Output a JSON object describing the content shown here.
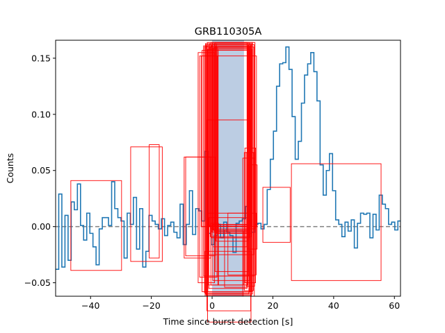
{
  "chart_data": {
    "type": "line",
    "title": "GRB110305A",
    "xlabel": "Time since burst detection [s]",
    "ylabel": "Counts",
    "xlim": [
      -51.5,
      62
    ],
    "ylim": [
      -0.062,
      0.166
    ],
    "xticks": [
      -40,
      -20,
      0,
      20,
      40,
      60
    ],
    "xtick_labels": [
      "−40",
      "−20",
      "0",
      "20",
      "40",
      "60"
    ],
    "yticks": [
      -0.05,
      0.0,
      0.05,
      0.1,
      0.15
    ],
    "ytick_labels": [
      "−0.05",
      "0.00",
      "0.05",
      "0.10",
      "0.15"
    ],
    "grid": false,
    "baseline": 0.0,
    "series": [
      {
        "style": "steps",
        "color": "#1f77b4",
        "bin_width": 1.024,
        "x_start": -51.5,
        "values": [
          -0.038,
          0.029,
          -0.036,
          0.01,
          -0.03,
          0.022,
          0.015,
          0.038,
          0.001,
          -0.012,
          0.012,
          -0.006,
          -0.018,
          -0.034,
          -0.002,
          0.008,
          0.008,
          0.001,
          0.04,
          0.016,
          0.008,
          0.005,
          -0.028,
          0.012,
          0.002,
          0.026,
          -0.02,
          0.016,
          -0.036,
          -0.022,
          0.01,
          0.005,
          0.002,
          -0.002,
          0.007,
          -0.008,
          0.001,
          0.004,
          -0.005,
          -0.01,
          0.02,
          -0.016,
          0.002,
          0.032,
          -0.007,
          0.016,
          0.014,
          0.005,
          0.067,
          -0.006,
          -0.016,
          -0.008,
          0.002,
          -0.01,
          0.004,
          -0.005,
          -0.008,
          -0.023,
          0.003,
          0.005,
          0.007,
          0.018,
          0.006,
          -0.005,
          0.002,
          0.003,
          -0.002,
          0.002,
          0.033,
          0.06,
          0.085,
          0.125,
          0.145,
          0.146,
          0.16,
          0.14,
          0.098,
          0.06,
          0.076,
          0.11,
          0.135,
          0.145,
          0.155,
          0.138,
          0.112,
          0.055,
          0.028,
          0.05,
          0.065,
          0.032,
          0.006,
          0.002,
          -0.009,
          0.004,
          -0.004,
          0.006,
          -0.019,
          0.003,
          0.012,
          0.011,
          0.012,
          -0.01,
          0.011,
          -0.003,
          0.028,
          0.02,
          0.016,
          0.002,
          0.004,
          -0.003,
          0.005,
          -0.024,
          -0.005,
          -0.018,
          0.012,
          -0.045,
          0.008,
          -0.027,
          -0.001,
          0.032,
          0.005,
          0.01,
          0.004,
          -0.019,
          0.034,
          0.028,
          0.022,
          0.032,
          0.019,
          0.005,
          0.032,
          0.01,
          0.05,
          0.033,
          0.012,
          0.03,
          0.025,
          -0.03,
          -0.02,
          0.002,
          0.019,
          0.004,
          -0.017,
          0.035,
          0.003,
          0.025,
          0.006,
          -0.001,
          0.002,
          -0.015,
          -0.007,
          -0.025,
          0.036
        ]
      }
    ],
    "shaded_region": {
      "x": [
        0,
        10.5
      ],
      "color": "#b0c4de"
    },
    "highlight_boxes": {
      "color": "#ff0000",
      "boxes": [
        [
          -46.5,
          -0.039,
          -29.8,
          0.041
        ],
        [
          -26.8,
          -0.031,
          -16.4,
          0.071
        ],
        [
          -20.7,
          -0.028,
          -17.4,
          0.073
        ],
        [
          -9.2,
          -0.028,
          -0.4,
          0.062
        ],
        [
          -8.7,
          -0.026,
          1.1,
          0.062
        ],
        [
          -4.6,
          -0.05,
          0.8,
          0.155
        ],
        [
          -4.1,
          -0.045,
          1.6,
          0.152
        ],
        [
          -3.6,
          0.0,
          14.6,
          0.152
        ],
        [
          -3.3,
          -0.058,
          12.5,
          0.157
        ],
        [
          -2.8,
          -0.044,
          12.0,
          0.161
        ],
        [
          -2.5,
          -0.059,
          12.3,
          0.16
        ],
        [
          -2.2,
          -0.06,
          12.1,
          0.163
        ],
        [
          -2.0,
          -0.061,
          12.8,
          0.162
        ],
        [
          -1.8,
          -0.062,
          12.9,
          0.161
        ],
        [
          -1.6,
          -0.06,
          13.3,
          0.164
        ],
        [
          -1.4,
          -0.058,
          13.1,
          0.158
        ],
        [
          -1.2,
          -0.044,
          13.9,
          0.162
        ],
        [
          -1.0,
          -0.025,
          13.7,
          0.16
        ],
        [
          -0.8,
          -0.0,
          13.3,
          0.163
        ],
        [
          -0.6,
          -0.009,
          12.9,
          0.16
        ],
        [
          -0.4,
          -0.002,
          14.1,
          0.164
        ],
        [
          -0.2,
          -0.01,
          11.9,
          0.162
        ],
        [
          0.0,
          -0.005,
          12.4,
          0.161
        ],
        [
          0.1,
          0.002,
          12.2,
          0.164
        ],
        [
          0.2,
          -0.018,
          11.5,
          0.163
        ],
        [
          0.4,
          -0.003,
          12.2,
          0.159
        ],
        [
          0.6,
          -0.004,
          11.6,
          0.16
        ],
        [
          0.8,
          0.0,
          12.6,
          0.163
        ],
        [
          1.0,
          -0.006,
          11.6,
          0.164
        ],
        [
          1.2,
          -0.01,
          12.2,
          0.16
        ],
        [
          1.3,
          -0.013,
          11.8,
          0.161
        ],
        [
          1.5,
          -0.006,
          13.0,
          0.163
        ],
        [
          1.8,
          -0.006,
          12.4,
          0.16
        ],
        [
          2.0,
          -0.004,
          11.6,
          0.158
        ],
        [
          -1.7,
          -0.075,
          12.7,
          0.095
        ],
        [
          -1.5,
          -0.085,
          12.8,
          0.001
        ],
        [
          -2.3,
          -0.062,
          12.9,
          -0.022
        ],
        [
          -1.3,
          -0.052,
          11.8,
          0.012
        ],
        [
          -1.1,
          -0.055,
          11.5,
          0.008
        ],
        [
          -0.4,
          -0.052,
          2.1,
          0.003
        ],
        [
          0.2,
          -0.048,
          12.4,
          0.002
        ],
        [
          1.0,
          -0.04,
          12.0,
          0.0
        ],
        [
          1.9,
          -0.052,
          10.3,
          -0.004
        ],
        [
          4.1,
          -0.054,
          11.6,
          -0.003
        ],
        [
          5.2,
          -0.043,
          14.5,
          0.012
        ],
        [
          10.1,
          -0.062,
          13.9,
          0.061
        ],
        [
          10.6,
          -0.057,
          13.6,
          0.066
        ],
        [
          10.8,
          -0.05,
          14.3,
          0.07
        ],
        [
          11.2,
          -0.053,
          14.0,
          0.066
        ],
        [
          11.6,
          -0.02,
          14.8,
          0.055
        ],
        [
          16.7,
          -0.014,
          25.7,
          0.035
        ],
        [
          26.1,
          -0.048,
          55.6,
          0.056
        ]
      ]
    }
  }
}
